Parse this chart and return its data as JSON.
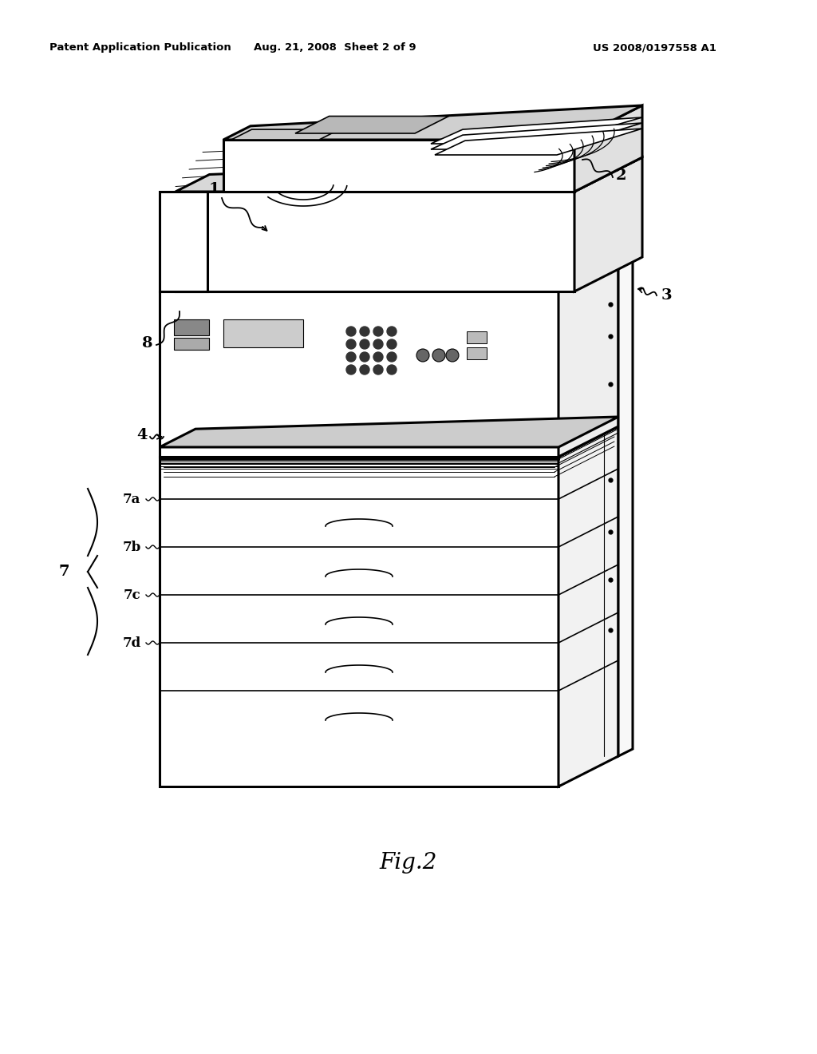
{
  "header_left": "Patent Application Publication",
  "header_center": "Aug. 21, 2008  Sheet 2 of 9",
  "header_right": "US 2008/0197558 A1",
  "background_color": "#ffffff",
  "line_color": "#000000",
  "fig_label": "Fig.2",
  "drawing": {
    "ox": 75,
    "oy": 38,
    "lw_outer": 2.2,
    "lw_inner": 1.2,
    "lw_detail": 0.8
  }
}
